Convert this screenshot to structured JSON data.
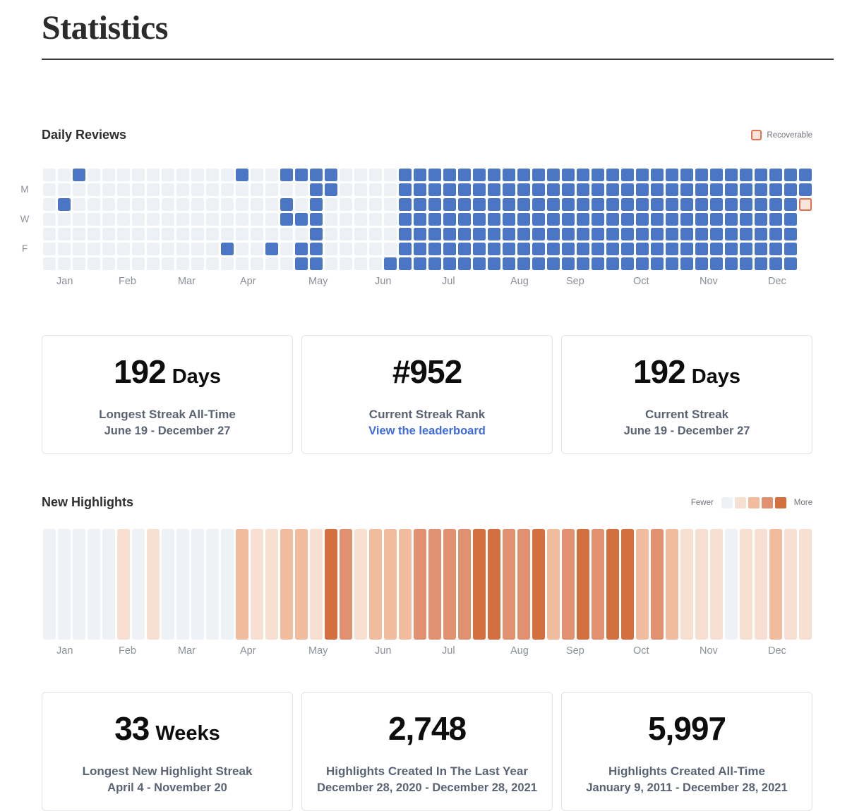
{
  "page": {
    "title": "Statistics"
  },
  "daily_reviews_section": {
    "title": "Daily Reviews",
    "legend_label": "Recoverable"
  },
  "streak_cards": [
    {
      "value": "192",
      "unit": "Days",
      "label": "Longest Streak All-Time",
      "sub": "June 19 - December 27"
    },
    {
      "value": "#952",
      "unit": "",
      "label": "Current Streak Rank",
      "link": "View the leaderboard"
    },
    {
      "value": "192",
      "unit": "Days",
      "label": "Current Streak",
      "sub": "June 19 - December 27"
    }
  ],
  "new_highlights_section": {
    "title": "New Highlights",
    "legend_fewer": "Fewer",
    "legend_more": "More"
  },
  "highlight_cards": [
    {
      "value": "33",
      "unit": "Weeks",
      "label": "Longest New Highlight Streak",
      "sub": "April 4 - November 20"
    },
    {
      "value": "2,748",
      "unit": "",
      "label": "Highlights Created In The Last Year",
      "sub": "December 28, 2020 - December 28, 2021"
    },
    {
      "value": "5,997",
      "unit": "",
      "label": "Highlights Created All-Time",
      "sub": "January 9, 2011 - December 28, 2021"
    }
  ],
  "chart_data": [
    {
      "type": "heatmap",
      "title": "Daily Reviews",
      "orientation": "weeks-as-columns, days-as-rows (Sun top to Sat bottom)",
      "day_labels": [
        {
          "label": "M",
          "row": 1
        },
        {
          "label": "W",
          "row": 3
        },
        {
          "label": "F",
          "row": 5
        }
      ],
      "months": [
        {
          "label": "Jan",
          "week": 0.9
        },
        {
          "label": "Feb",
          "week": 5.1
        },
        {
          "label": "Mar",
          "week": 9.1
        },
        {
          "label": "Apr",
          "week": 13.3
        },
        {
          "label": "May",
          "week": 17.9
        },
        {
          "label": "Jun",
          "week": 22.4
        },
        {
          "label": "Jul",
          "week": 26.9
        },
        {
          "label": "Aug",
          "week": 31.5
        },
        {
          "label": "Sep",
          "week": 35.3
        },
        {
          "label": "Oct",
          "week": 39.8
        },
        {
          "label": "Nov",
          "week": 44.3
        },
        {
          "label": "Dec",
          "week": 48.9
        }
      ],
      "cell_states": {
        "0": "no review",
        "1": "reviewed",
        "2": "recoverable",
        "-1": "absent"
      },
      "colors": {
        "empty": "#edf0f5",
        "reviewed": "#4b76c5",
        "recoverable_fill": "#f8e4da",
        "recoverable_border": "#dd7350"
      },
      "weeks": [
        [
          0,
          0,
          0,
          0,
          0,
          0,
          0
        ],
        [
          0,
          0,
          1,
          0,
          0,
          0,
          0
        ],
        [
          1,
          0,
          0,
          0,
          0,
          0,
          0
        ],
        [
          0,
          0,
          0,
          0,
          0,
          0,
          0
        ],
        [
          0,
          0,
          0,
          0,
          0,
          0,
          0
        ],
        [
          0,
          0,
          0,
          0,
          0,
          0,
          0
        ],
        [
          0,
          0,
          0,
          0,
          0,
          0,
          0
        ],
        [
          0,
          0,
          0,
          0,
          0,
          0,
          0
        ],
        [
          0,
          0,
          0,
          0,
          0,
          0,
          0
        ],
        [
          0,
          0,
          0,
          0,
          0,
          0,
          0
        ],
        [
          0,
          0,
          0,
          0,
          0,
          0,
          0
        ],
        [
          0,
          0,
          0,
          0,
          0,
          0,
          0
        ],
        [
          0,
          0,
          0,
          0,
          0,
          1,
          0
        ],
        [
          1,
          0,
          0,
          0,
          0,
          0,
          0
        ],
        [
          0,
          0,
          0,
          0,
          0,
          0,
          0
        ],
        [
          0,
          0,
          0,
          0,
          0,
          1,
          0
        ],
        [
          1,
          0,
          1,
          1,
          0,
          0,
          0
        ],
        [
          1,
          0,
          0,
          1,
          0,
          1,
          1
        ],
        [
          1,
          1,
          1,
          1,
          1,
          1,
          1
        ],
        [
          1,
          1,
          0,
          0,
          0,
          0,
          0
        ],
        [
          0,
          0,
          0,
          0,
          0,
          0,
          0
        ],
        [
          0,
          0,
          0,
          0,
          0,
          0,
          0
        ],
        [
          0,
          0,
          0,
          0,
          0,
          0,
          0
        ],
        [
          0,
          0,
          0,
          0,
          0,
          0,
          1
        ],
        [
          1,
          1,
          1,
          1,
          1,
          1,
          1
        ],
        [
          1,
          1,
          1,
          1,
          1,
          1,
          1
        ],
        [
          1,
          1,
          1,
          1,
          1,
          1,
          1
        ],
        [
          1,
          1,
          1,
          1,
          1,
          1,
          1
        ],
        [
          1,
          1,
          1,
          1,
          1,
          1,
          1
        ],
        [
          1,
          1,
          1,
          1,
          1,
          1,
          1
        ],
        [
          1,
          1,
          1,
          1,
          1,
          1,
          1
        ],
        [
          1,
          1,
          1,
          1,
          1,
          1,
          1
        ],
        [
          1,
          1,
          1,
          1,
          1,
          1,
          1
        ],
        [
          1,
          1,
          1,
          1,
          1,
          1,
          1
        ],
        [
          1,
          1,
          1,
          1,
          1,
          1,
          1
        ],
        [
          1,
          1,
          1,
          1,
          1,
          1,
          1
        ],
        [
          1,
          1,
          1,
          1,
          1,
          1,
          1
        ],
        [
          1,
          1,
          1,
          1,
          1,
          1,
          1
        ],
        [
          1,
          1,
          1,
          1,
          1,
          1,
          1
        ],
        [
          1,
          1,
          1,
          1,
          1,
          1,
          1
        ],
        [
          1,
          1,
          1,
          1,
          1,
          1,
          1
        ],
        [
          1,
          1,
          1,
          1,
          1,
          1,
          1
        ],
        [
          1,
          1,
          1,
          1,
          1,
          1,
          1
        ],
        [
          1,
          1,
          1,
          1,
          1,
          1,
          1
        ],
        [
          1,
          1,
          1,
          1,
          1,
          1,
          1
        ],
        [
          1,
          1,
          1,
          1,
          1,
          1,
          1
        ],
        [
          1,
          1,
          1,
          1,
          1,
          1,
          1
        ],
        [
          1,
          1,
          1,
          1,
          1,
          1,
          1
        ],
        [
          1,
          1,
          1,
          1,
          1,
          1,
          1
        ],
        [
          1,
          1,
          1,
          1,
          1,
          1,
          1
        ],
        [
          1,
          1,
          1,
          1,
          1,
          1,
          1
        ],
        [
          1,
          1,
          2,
          -1,
          -1,
          -1,
          -1
        ]
      ]
    },
    {
      "type": "heatmap",
      "title": "New Highlights",
      "orientation": "weeks-as-columns, single row, intensity = highlights created",
      "months": [
        {
          "label": "Jan",
          "week": 0.9
        },
        {
          "label": "Feb",
          "week": 5.1
        },
        {
          "label": "Mar",
          "week": 9.1
        },
        {
          "label": "Apr",
          "week": 13.3
        },
        {
          "label": "May",
          "week": 17.9
        },
        {
          "label": "Jun",
          "week": 22.4
        },
        {
          "label": "Jul",
          "week": 26.9
        },
        {
          "label": "Aug",
          "week": 31.5
        },
        {
          "label": "Sep",
          "week": 35.3
        },
        {
          "label": "Oct",
          "week": 39.8
        },
        {
          "label": "Nov",
          "week": 44.3
        },
        {
          "label": "Dec",
          "week": 48.9
        }
      ],
      "legend": {
        "fewer": "Fewer",
        "more": "More"
      },
      "level_colors": [
        "#eef1f5",
        "#f7dfd2",
        "#f0bc9d",
        "#e19170",
        "#d2713f"
      ],
      "levels": [
        0,
        0,
        0,
        0,
        0,
        1,
        0,
        1,
        0,
        0,
        0,
        0,
        0,
        2,
        1,
        1,
        2,
        2,
        1,
        4,
        3,
        1,
        2,
        2,
        2,
        3,
        3,
        3,
        3,
        4,
        4,
        3,
        3,
        4,
        2,
        3,
        4,
        3,
        4,
        4,
        2,
        3,
        2,
        1,
        1,
        1,
        0,
        1,
        1,
        2,
        1,
        1
      ]
    }
  ]
}
